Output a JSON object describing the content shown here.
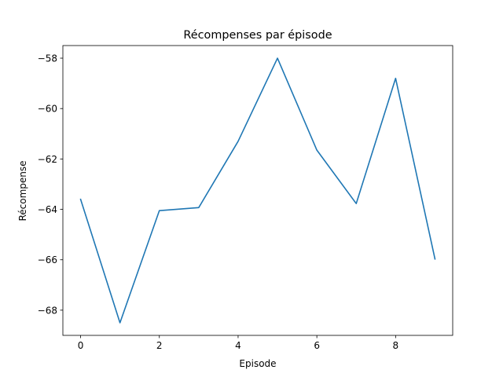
{
  "chart_data": {
    "type": "line",
    "title": "Récompenses par épisode",
    "xlabel": "Episode",
    "ylabel": "Récompense",
    "xlim": [
      -0.45,
      9.45
    ],
    "ylim": [
      -69.0,
      -57.5
    ],
    "xticks": [
      0,
      2,
      4,
      6,
      8
    ],
    "yticks": [
      -68,
      -66,
      -64,
      -62,
      -60,
      -58
    ],
    "ytick_labels": [
      "−68",
      "−66",
      "−64",
      "−62",
      "−60",
      "−58"
    ],
    "grid": false,
    "series": [
      {
        "color": "#1f77b4",
        "x": [
          0,
          1,
          2,
          3,
          4,
          5,
          6,
          7,
          8,
          9
        ],
        "y": [
          -63.6,
          -68.5,
          -64.05,
          -63.93,
          -61.3,
          -58.0,
          -61.65,
          -63.77,
          -58.8,
          -65.97
        ]
      }
    ]
  }
}
